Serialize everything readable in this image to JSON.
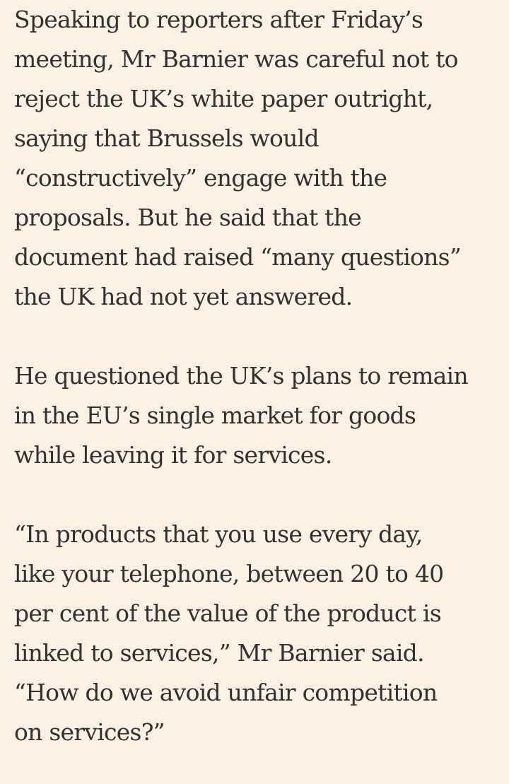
{
  "article": {
    "paragraphs": [
      {
        "lines": [
          "Speaking to reporters after Friday’s",
          "meeting, Mr Barnier was careful not to",
          "reject the UK’s white paper outright,",
          "saying that Brussels would",
          "“constructively” engage with the",
          "proposals. But he said that the",
          "document had raised “many questions”",
          "the UK had not yet answered."
        ]
      },
      {
        "lines": [
          "He questioned the UK’s plans to remain",
          "in the EU’s single market for goods",
          "while leaving it for services."
        ]
      },
      {
        "lines": [
          "“In products that you use every day,",
          "like your telephone, between 20 to 40",
          "per cent of the value of the product is",
          "linked to services,” Mr Barnier said.",
          "“How do we avoid unfair competition",
          "on services?”"
        ]
      }
    ]
  }
}
